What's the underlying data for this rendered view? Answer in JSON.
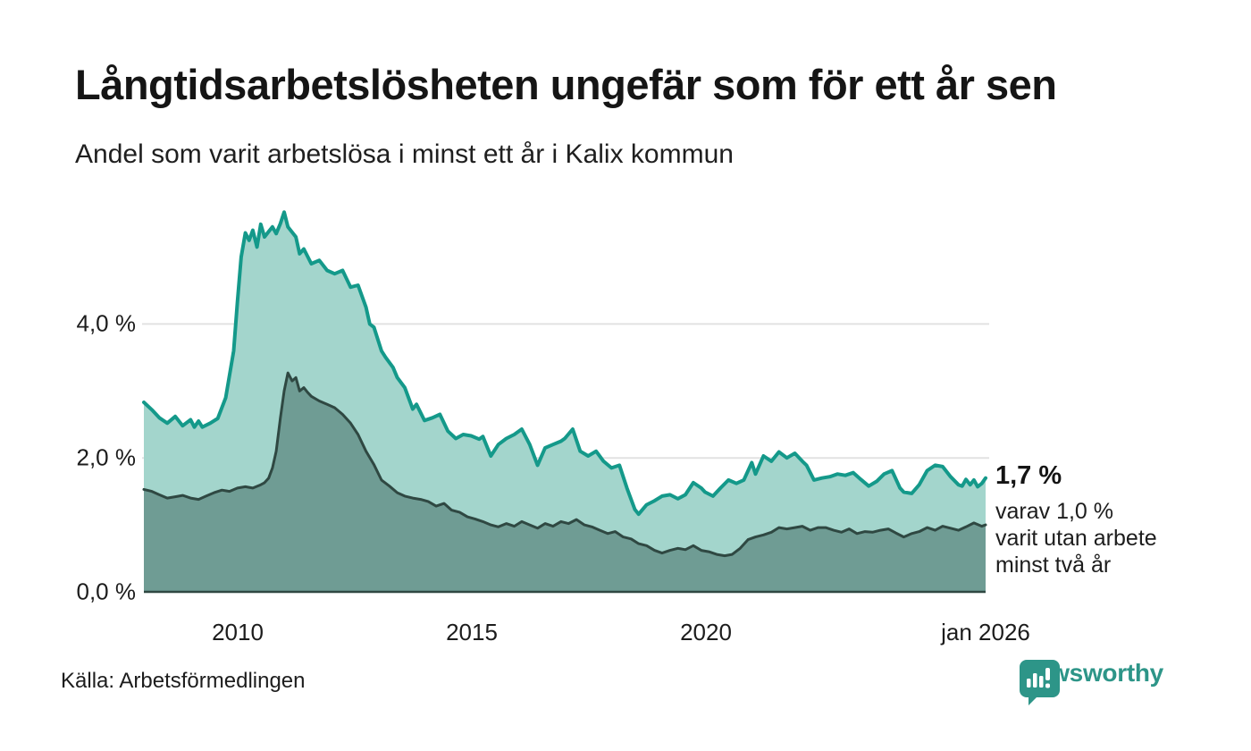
{
  "header": {
    "title": "Långtidsarbetslösheten ungefär som för ett år sen",
    "subtitle": "Andel som varit arbetslösa i minst ett år i Kalix kommun"
  },
  "annotation": {
    "value_label": "1,7 %",
    "lines": [
      "varav 1,0 %",
      "varit utan arbete",
      "minst två år"
    ]
  },
  "footer": {
    "source": "Källa: Arbetsförmedlingen",
    "brand": "Newsworthy"
  },
  "colors": {
    "teal_line": "#14998a",
    "light_fill": "#a3d5cc",
    "dark_fill": "#6f9c94",
    "dark_line": "#2f4842",
    "grid": "#e2e2e2",
    "brand_teal": "#2d9588",
    "text": "#1a1a1a"
  },
  "chart_data": {
    "type": "area",
    "title": "Långtidsarbetslösheten ungefär som för ett år sen",
    "subtitle": "Andel som varit arbetslösa i minst ett år i Kalix kommun",
    "unit": "%",
    "grid": true,
    "legend_position": "none",
    "x_axis": {
      "range": [
        2008.0,
        2026.0
      ],
      "ticks": [
        {
          "x": 2010,
          "label": "2010"
        },
        {
          "x": 2015,
          "label": "2015"
        },
        {
          "x": 2020,
          "label": "2020"
        },
        {
          "x": 2026,
          "label": "jan 2026"
        }
      ]
    },
    "y_axis": {
      "range": [
        0,
        5.8
      ],
      "ticks": [
        {
          "value": 4.0,
          "label": "4,0 %",
          "grid": true
        },
        {
          "value": 2.0,
          "label": "2,0 %",
          "grid": true
        },
        {
          "value": 0.0,
          "label": "0,0 %",
          "grid": false
        }
      ]
    },
    "series": [
      {
        "name": "Andel arbetslösa minst ett år",
        "stroke": "#14998a",
        "stroke_width": 4,
        "fill": "#a3d5cc",
        "end_value": "1,7 %",
        "points": [
          [
            2008.0,
            2.83
          ],
          [
            2008.17,
            2.72
          ],
          [
            2008.33,
            2.6
          ],
          [
            2008.5,
            2.52
          ],
          [
            2008.67,
            2.62
          ],
          [
            2008.83,
            2.48
          ],
          [
            2009.0,
            2.57
          ],
          [
            2009.08,
            2.46
          ],
          [
            2009.17,
            2.55
          ],
          [
            2009.25,
            2.46
          ],
          [
            2009.42,
            2.52
          ],
          [
            2009.58,
            2.59
          ],
          [
            2009.75,
            2.9
          ],
          [
            2009.92,
            3.6
          ],
          [
            2010.0,
            4.33
          ],
          [
            2010.08,
            5.0
          ],
          [
            2010.17,
            5.36
          ],
          [
            2010.25,
            5.25
          ],
          [
            2010.33,
            5.4
          ],
          [
            2010.42,
            5.15
          ],
          [
            2010.5,
            5.49
          ],
          [
            2010.58,
            5.3
          ],
          [
            2010.67,
            5.38
          ],
          [
            2010.75,
            5.45
          ],
          [
            2010.83,
            5.35
          ],
          [
            2010.92,
            5.5
          ],
          [
            2011.0,
            5.67
          ],
          [
            2011.08,
            5.45
          ],
          [
            2011.25,
            5.3
          ],
          [
            2011.33,
            5.05
          ],
          [
            2011.42,
            5.12
          ],
          [
            2011.58,
            4.9
          ],
          [
            2011.75,
            4.95
          ],
          [
            2011.92,
            4.8
          ],
          [
            2012.08,
            4.75
          ],
          [
            2012.25,
            4.8
          ],
          [
            2012.42,
            4.55
          ],
          [
            2012.58,
            4.58
          ],
          [
            2012.75,
            4.25
          ],
          [
            2012.83,
            4.0
          ],
          [
            2012.92,
            3.95
          ],
          [
            2013.08,
            3.6
          ],
          [
            2013.17,
            3.5
          ],
          [
            2013.33,
            3.35
          ],
          [
            2013.42,
            3.2
          ],
          [
            2013.58,
            3.05
          ],
          [
            2013.75,
            2.73
          ],
          [
            2013.83,
            2.8
          ],
          [
            2014.0,
            2.56
          ],
          [
            2014.17,
            2.6
          ],
          [
            2014.33,
            2.65
          ],
          [
            2014.5,
            2.4
          ],
          [
            2014.67,
            2.29
          ],
          [
            2014.83,
            2.35
          ],
          [
            2015.0,
            2.33
          ],
          [
            2015.17,
            2.28
          ],
          [
            2015.25,
            2.32
          ],
          [
            2015.42,
            2.03
          ],
          [
            2015.58,
            2.2
          ],
          [
            2015.75,
            2.29
          ],
          [
            2015.92,
            2.35
          ],
          [
            2016.08,
            2.43
          ],
          [
            2016.25,
            2.2
          ],
          [
            2016.42,
            1.89
          ],
          [
            2016.58,
            2.15
          ],
          [
            2016.75,
            2.2
          ],
          [
            2016.92,
            2.25
          ],
          [
            2017.0,
            2.29
          ],
          [
            2017.17,
            2.43
          ],
          [
            2017.33,
            2.1
          ],
          [
            2017.5,
            2.03
          ],
          [
            2017.67,
            2.1
          ],
          [
            2017.83,
            1.95
          ],
          [
            2018.0,
            1.85
          ],
          [
            2018.17,
            1.89
          ],
          [
            2018.33,
            1.55
          ],
          [
            2018.5,
            1.23
          ],
          [
            2018.58,
            1.16
          ],
          [
            2018.75,
            1.3
          ],
          [
            2018.92,
            1.36
          ],
          [
            2019.08,
            1.43
          ],
          [
            2019.25,
            1.45
          ],
          [
            2019.42,
            1.39
          ],
          [
            2019.58,
            1.45
          ],
          [
            2019.75,
            1.63
          ],
          [
            2019.92,
            1.55
          ],
          [
            2020.0,
            1.49
          ],
          [
            2020.17,
            1.43
          ],
          [
            2020.33,
            1.55
          ],
          [
            2020.5,
            1.67
          ],
          [
            2020.67,
            1.62
          ],
          [
            2020.83,
            1.67
          ],
          [
            2021.0,
            1.93
          ],
          [
            2021.08,
            1.76
          ],
          [
            2021.25,
            2.03
          ],
          [
            2021.42,
            1.95
          ],
          [
            2021.58,
            2.09
          ],
          [
            2021.75,
            2.0
          ],
          [
            2021.92,
            2.07
          ],
          [
            2022.08,
            1.95
          ],
          [
            2022.17,
            1.89
          ],
          [
            2022.33,
            1.67
          ],
          [
            2022.5,
            1.7
          ],
          [
            2022.67,
            1.72
          ],
          [
            2022.83,
            1.76
          ],
          [
            2023.0,
            1.74
          ],
          [
            2023.17,
            1.78
          ],
          [
            2023.33,
            1.68
          ],
          [
            2023.5,
            1.58
          ],
          [
            2023.67,
            1.65
          ],
          [
            2023.83,
            1.76
          ],
          [
            2024.0,
            1.81
          ],
          [
            2024.17,
            1.55
          ],
          [
            2024.25,
            1.49
          ],
          [
            2024.42,
            1.47
          ],
          [
            2024.58,
            1.6
          ],
          [
            2024.75,
            1.81
          ],
          [
            2024.92,
            1.89
          ],
          [
            2025.08,
            1.87
          ],
          [
            2025.25,
            1.72
          ],
          [
            2025.42,
            1.6
          ],
          [
            2025.5,
            1.58
          ],
          [
            2025.58,
            1.68
          ],
          [
            2025.67,
            1.6
          ],
          [
            2025.75,
            1.67
          ],
          [
            2025.83,
            1.57
          ],
          [
            2025.92,
            1.62
          ],
          [
            2026.0,
            1.7
          ]
        ]
      },
      {
        "name": "Andel arbetslösa minst två år",
        "stroke": "#2f4842",
        "stroke_width": 3,
        "fill": "#6f9c94",
        "end_value": "1,0 %",
        "points": [
          [
            2008.0,
            1.53
          ],
          [
            2008.17,
            1.5
          ],
          [
            2008.33,
            1.45
          ],
          [
            2008.5,
            1.4
          ],
          [
            2008.67,
            1.42
          ],
          [
            2008.83,
            1.44
          ],
          [
            2009.0,
            1.4
          ],
          [
            2009.17,
            1.38
          ],
          [
            2009.33,
            1.43
          ],
          [
            2009.5,
            1.48
          ],
          [
            2009.67,
            1.52
          ],
          [
            2009.83,
            1.5
          ],
          [
            2010.0,
            1.55
          ],
          [
            2010.17,
            1.57
          ],
          [
            2010.33,
            1.55
          ],
          [
            2010.5,
            1.6
          ],
          [
            2010.58,
            1.63
          ],
          [
            2010.67,
            1.7
          ],
          [
            2010.75,
            1.85
          ],
          [
            2010.83,
            2.1
          ],
          [
            2010.92,
            2.6
          ],
          [
            2011.0,
            3.0
          ],
          [
            2011.08,
            3.27
          ],
          [
            2011.17,
            3.15
          ],
          [
            2011.25,
            3.2
          ],
          [
            2011.33,
            3.0
          ],
          [
            2011.42,
            3.05
          ],
          [
            2011.5,
            2.98
          ],
          [
            2011.58,
            2.92
          ],
          [
            2011.75,
            2.85
          ],
          [
            2011.92,
            2.8
          ],
          [
            2012.08,
            2.75
          ],
          [
            2012.25,
            2.65
          ],
          [
            2012.42,
            2.52
          ],
          [
            2012.58,
            2.35
          ],
          [
            2012.75,
            2.1
          ],
          [
            2012.92,
            1.9
          ],
          [
            2013.08,
            1.67
          ],
          [
            2013.25,
            1.58
          ],
          [
            2013.42,
            1.48
          ],
          [
            2013.58,
            1.43
          ],
          [
            2013.75,
            1.4
          ],
          [
            2013.92,
            1.38
          ],
          [
            2014.08,
            1.35
          ],
          [
            2014.25,
            1.28
          ],
          [
            2014.42,
            1.32
          ],
          [
            2014.58,
            1.22
          ],
          [
            2014.75,
            1.19
          ],
          [
            2014.92,
            1.12
          ],
          [
            2015.08,
            1.09
          ],
          [
            2015.25,
            1.05
          ],
          [
            2015.42,
            1.0
          ],
          [
            2015.58,
            0.97
          ],
          [
            2015.75,
            1.02
          ],
          [
            2015.92,
            0.98
          ],
          [
            2016.08,
            1.05
          ],
          [
            2016.25,
            1.0
          ],
          [
            2016.42,
            0.95
          ],
          [
            2016.58,
            1.02
          ],
          [
            2016.75,
            0.98
          ],
          [
            2016.92,
            1.05
          ],
          [
            2017.08,
            1.02
          ],
          [
            2017.25,
            1.08
          ],
          [
            2017.42,
            1.0
          ],
          [
            2017.58,
            0.97
          ],
          [
            2017.75,
            0.92
          ],
          [
            2017.92,
            0.87
          ],
          [
            2018.08,
            0.9
          ],
          [
            2018.25,
            0.82
          ],
          [
            2018.42,
            0.79
          ],
          [
            2018.58,
            0.72
          ],
          [
            2018.75,
            0.69
          ],
          [
            2018.92,
            0.62
          ],
          [
            2019.08,
            0.58
          ],
          [
            2019.25,
            0.62
          ],
          [
            2019.42,
            0.65
          ],
          [
            2019.58,
            0.63
          ],
          [
            2019.75,
            0.69
          ],
          [
            2019.92,
            0.62
          ],
          [
            2020.08,
            0.6
          ],
          [
            2020.25,
            0.56
          ],
          [
            2020.42,
            0.54
          ],
          [
            2020.58,
            0.56
          ],
          [
            2020.75,
            0.65
          ],
          [
            2020.92,
            0.78
          ],
          [
            2021.08,
            0.82
          ],
          [
            2021.25,
            0.85
          ],
          [
            2021.42,
            0.89
          ],
          [
            2021.58,
            0.96
          ],
          [
            2021.75,
            0.94
          ],
          [
            2021.92,
            0.96
          ],
          [
            2022.08,
            0.98
          ],
          [
            2022.25,
            0.92
          ],
          [
            2022.42,
            0.96
          ],
          [
            2022.58,
            0.96
          ],
          [
            2022.75,
            0.92
          ],
          [
            2022.92,
            0.89
          ],
          [
            2023.08,
            0.94
          ],
          [
            2023.25,
            0.87
          ],
          [
            2023.42,
            0.9
          ],
          [
            2023.58,
            0.89
          ],
          [
            2023.75,
            0.92
          ],
          [
            2023.92,
            0.94
          ],
          [
            2024.08,
            0.88
          ],
          [
            2024.25,
            0.82
          ],
          [
            2024.42,
            0.87
          ],
          [
            2024.58,
            0.9
          ],
          [
            2024.75,
            0.96
          ],
          [
            2024.92,
            0.92
          ],
          [
            2025.08,
            0.98
          ],
          [
            2025.25,
            0.95
          ],
          [
            2025.42,
            0.92
          ],
          [
            2025.58,
            0.97
          ],
          [
            2025.75,
            1.03
          ],
          [
            2025.92,
            0.98
          ],
          [
            2026.0,
            1.0
          ]
        ]
      }
    ]
  }
}
